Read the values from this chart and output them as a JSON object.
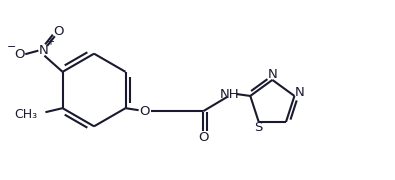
{
  "bg_color": "#ffffff",
  "line_color": "#1a1a2e",
  "line_width": 1.5,
  "font_size": 9.0,
  "figsize": [
    3.95,
    1.8
  ],
  "dpi": 100,
  "xlim": [
    0.0,
    7.8
  ],
  "ylim": [
    0.5,
    3.5
  ]
}
